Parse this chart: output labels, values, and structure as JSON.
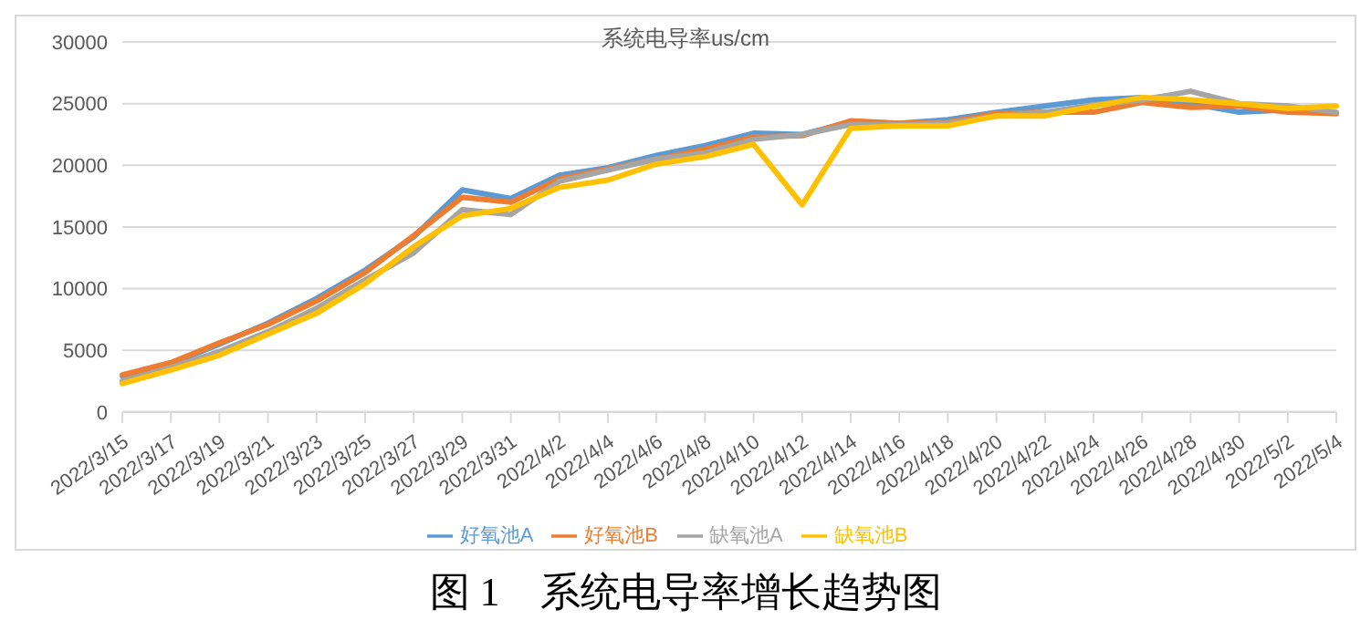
{
  "chart_data": {
    "type": "line",
    "title": "系统电导率us/cm",
    "annotations": [
      "图 1　系统电导率增长趋势图"
    ],
    "categories": [
      "2022/3/15",
      "2022/3/17",
      "2022/3/19",
      "2022/3/21",
      "2022/3/23",
      "2022/3/25",
      "2022/3/27",
      "2022/3/29",
      "2022/3/31",
      "2022/4/2",
      "2022/4/4",
      "2022/4/6",
      "2022/4/8",
      "2022/4/10",
      "2022/4/12",
      "2022/4/14",
      "2022/4/16",
      "2022/4/18",
      "2022/4/20",
      "2022/4/22",
      "2022/4/24",
      "2022/4/26",
      "2022/4/28",
      "2022/4/30",
      "2022/5/2",
      "2022/5/4"
    ],
    "series": [
      {
        "name": "好氧池A",
        "color": "#5b9bd5",
        "values": [
          2900,
          3900,
          5500,
          7200,
          9200,
          11500,
          14200,
          18000,
          17300,
          19200,
          19800,
          20800,
          21600,
          22600,
          22500,
          23500,
          23400,
          23700,
          24300,
          24800,
          25300,
          25500,
          25000,
          24300,
          24500,
          24200
        ]
      },
      {
        "name": "好氧池B",
        "color": "#ed7d31",
        "values": [
          3000,
          4000,
          5600,
          7100,
          9000,
          11300,
          14300,
          17400,
          17000,
          18900,
          19700,
          20500,
          21300,
          22300,
          22400,
          23600,
          23400,
          23500,
          24200,
          24300,
          24300,
          25100,
          24700,
          24800,
          24300,
          24200
        ]
      },
      {
        "name": "缺氧池A",
        "color": "#a5a5a5",
        "values": [
          2500,
          3600,
          4900,
          6500,
          8400,
          10700,
          12900,
          16400,
          16000,
          18700,
          19600,
          20500,
          21000,
          22100,
          22500,
          23300,
          23300,
          23400,
          24000,
          24300,
          24900,
          25300,
          26000,
          25000,
          24800,
          24300
        ]
      },
      {
        "name": "缺氧池B",
        "color": "#ffc000",
        "values": [
          2300,
          3400,
          4600,
          6300,
          8000,
          10400,
          13400,
          15900,
          16500,
          18200,
          18800,
          20100,
          20700,
          21700,
          16800,
          23000,
          23200,
          23200,
          24000,
          24000,
          24800,
          25500,
          25300,
          25000,
          24600,
          24800
        ]
      }
    ],
    "ylim": [
      0,
      30000
    ],
    "yticks": [
      0,
      5000,
      10000,
      15000,
      20000,
      25000,
      30000
    ],
    "grid": "y",
    "legend": "bottom",
    "marker": "none",
    "line_style": "solid"
  }
}
